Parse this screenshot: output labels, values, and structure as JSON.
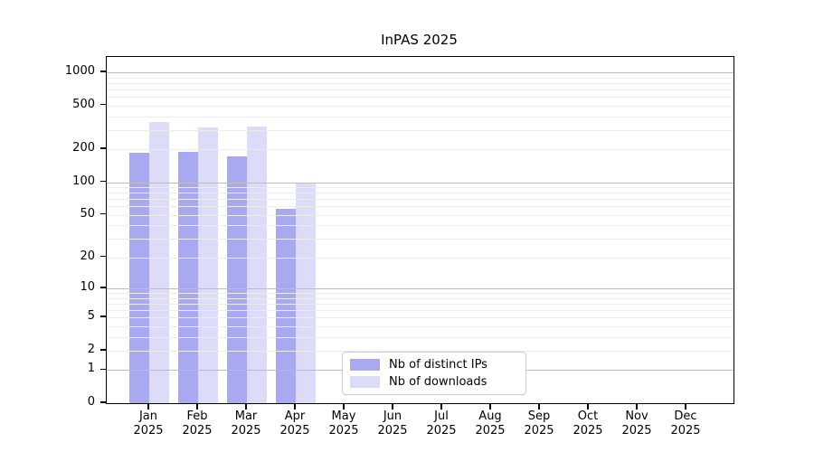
{
  "chart_data": {
    "type": "bar",
    "title": "InPAS 2025",
    "y_scale": "log10(value+1)",
    "y_ticks": [
      0,
      1,
      2,
      5,
      10,
      20,
      50,
      100,
      200,
      500,
      1000
    ],
    "ylim": [
      0,
      1380
    ],
    "grid": "on",
    "categories": [
      "Jan",
      "Feb",
      "Mar",
      "Apr",
      "May",
      "Jun",
      "Jul",
      "Aug",
      "Sep",
      "Oct",
      "Nov",
      "Dec"
    ],
    "category_year": "2025",
    "series": [
      {
        "name": "Nb of distinct IPs",
        "color": "#a9a9f2",
        "values": [
          185,
          190,
          172,
          57,
          0,
          0,
          0,
          0,
          0,
          0,
          0,
          0
        ]
      },
      {
        "name": "Nb of downloads",
        "color": "#dcdcf9",
        "values": [
          355,
          315,
          320,
          100,
          0,
          0,
          0,
          0,
          0,
          0,
          0,
          0
        ]
      }
    ],
    "legend_position": "bottom-center"
  },
  "colors": {
    "background": "#ffffff",
    "axis": "#000000",
    "grid_major": "#bdbdbd",
    "grid_minor": "#ececec",
    "legend_border": "#cccccc"
  }
}
